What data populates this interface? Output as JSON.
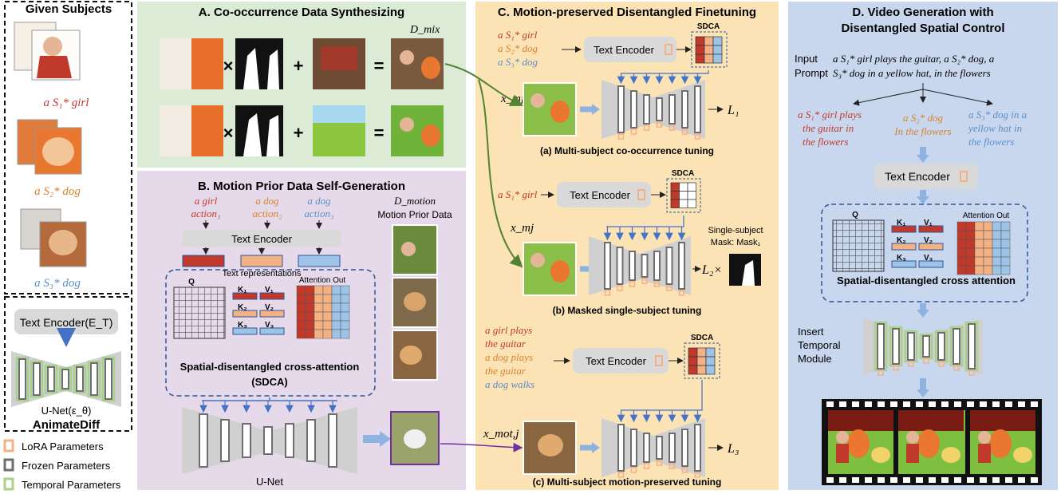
{
  "colors": {
    "panelA": "#dcebd6",
    "panelB": "#e6d9e9",
    "panelC": "#fbe3b6",
    "panelD": "#c9d7ee",
    "red": "#c0392b",
    "orange": "#d9822b",
    "blue": "#5b8fc9",
    "lora": "#f4b183",
    "frozen": "#6e6e6e",
    "temporal": "#a9d18e",
    "encoder": "#d9d9d9",
    "dashed": "#2f5597"
  },
  "left": {
    "given_title": "Given Subjects",
    "subject1": "a S₁* girl",
    "subject2": "a S₂* dog",
    "subject3": "a S₃* dog",
    "encoder": "Text Encoder(E_T)",
    "unet": "U-Net(ε_θ)",
    "animatediff": "AnimateDiff",
    "legend_lora": "LoRA Parameters",
    "legend_frozen": "Frozen Parameters",
    "legend_temporal": "Temporal Parameters"
  },
  "panelA": {
    "title": "A. Co-occurrence Data Synthesizing",
    "dmix": "D_mix",
    "op_times": "×",
    "op_plus": "+",
    "op_eq": "="
  },
  "panelB": {
    "title": "B. Motion Prior Data Self-Generation",
    "action1_a": "a girl",
    "action1_b": "action₁",
    "action2_a": "a dog",
    "action2_b": "action₂",
    "action3_a": "a dog",
    "action3_b": "action₃",
    "encoder": "Text Encoder",
    "text_repr": "Text representations",
    "q": "Q",
    "k1": "K₁",
    "v1": "V₁",
    "k2": "K₂",
    "v2": "V₂",
    "k3": "K₃",
    "v3": "V₃",
    "attn_out": "Attention Out",
    "sdca_1": "Spatial-disentangled cross-attention",
    "sdca_2": "(SDCA)",
    "unet": "U-Net",
    "dmotion": "D_motion",
    "motion_prior": "Motion Prior Data"
  },
  "panelC": {
    "title": "C. Motion-preserved Disentangled Finetuning",
    "a_p1": "a S₁* girl",
    "a_p2": "a S₂* dog",
    "a_p3": "a S₃* dog",
    "encoder": "Text Encoder",
    "sdca": "SDCA",
    "x_mj": "x_mj",
    "l1": "L₁",
    "cap_a": "(a) Multi-subject co-occurrence tuning",
    "b_p1": "a S₁* girl",
    "l2": "L₂×",
    "single1": "Single-subject",
    "single2": "Mask: Mask₁",
    "cap_b": "(b) Masked single-subject tuning",
    "c_p1": "a girl plays",
    "c_p2": "the guitar",
    "c_p3": "a dog plays",
    "c_p4": "the guitar",
    "c_p5": "a dog walks",
    "x_mot": "x_mot,j",
    "l3": "L₃",
    "cap_c": "(c) Multi-subject motion-preserved tuning"
  },
  "panelD": {
    "title1": "D. Video Generation with",
    "title2": "Disentangled Spatial Control",
    "input": "Input",
    "prompt": "Prompt",
    "prompt_l1": "a S₁* girl plays the guitar, a S₂* dog, a",
    "prompt_l2": "S₃* dog in a yellow hat, in the flowers",
    "s1_l1": "a S₁* girl plays",
    "s1_l2": "the guitar in",
    "s1_l3": "the flowers",
    "s2_l1": "a S₂* dog",
    "s2_l2": "In the flowers",
    "s3_l1": "a S₃* dog in a",
    "s3_l2": "yellow hat in",
    "s3_l3": "the flowers",
    "encoder": "Text Encoder",
    "q": "Q",
    "k1": "K₁",
    "v1": "V₁",
    "k2": "K₂",
    "v2": "V₂",
    "k3": "K₃",
    "v3": "V₃",
    "attn_out": "Attention Out",
    "sdca": "Spatial-disentangled cross attention",
    "insert1": "Insert",
    "insert2": "Temporal",
    "insert3": "Module"
  }
}
